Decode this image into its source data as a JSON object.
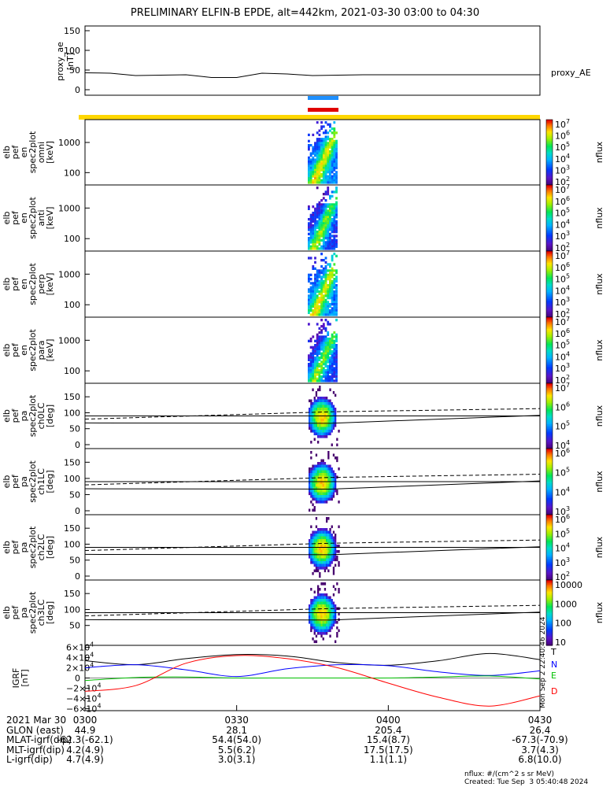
{
  "title": "PRELIMINARY ELFIN-B EPDE, alt=442km, 2021-03-30 03:00 to 04:30",
  "chart_data": [
    {
      "type": "line",
      "panel": "proxy_ae",
      "ylabel": "proxy_ae\n[nT]",
      "yticks": [
        "150",
        "100",
        "50",
        "0"
      ],
      "ylim": [
        0,
        160
      ],
      "series": [
        {
          "name": "proxy_AE",
          "x_min": [
            0,
            5,
            10,
            15,
            20,
            25,
            30,
            35,
            40,
            45,
            50,
            55,
            60,
            65,
            70,
            75,
            80,
            85,
            90
          ],
          "values": [
            43,
            42,
            36,
            37,
            38,
            31,
            31,
            42,
            40,
            36,
            37,
            38,
            38,
            38,
            38,
            38,
            38,
            38,
            38
          ]
        }
      ]
    },
    {
      "type": "heatmap",
      "panel": "elb pef en spec2plot omni",
      "ylabel": "elb\npef\nen\nspec2plot\nomni\n[keV]",
      "yticks": [
        "1000",
        "100"
      ],
      "colorbar": {
        "label": "nflux",
        "ticks": [
          "10^7",
          "10^6",
          "10^5",
          "10^4",
          "10^3",
          "10^2"
        ]
      }
    },
    {
      "type": "heatmap",
      "panel": "elb pef en spec2plot anti",
      "ylabel": "elb\npef\nen\nspec2plot\nanti\n[keV]",
      "yticks": [
        "1000",
        "100"
      ],
      "colorbar": {
        "label": "nflux",
        "ticks": [
          "10^7",
          "10^6",
          "10^5",
          "10^4",
          "10^3",
          "10^2"
        ]
      }
    },
    {
      "type": "heatmap",
      "panel": "elb pef en spec2plot perp",
      "ylabel": "elb\npef\nen\nspec2plot\nperp\n[keV]",
      "yticks": [
        "1000",
        "100"
      ],
      "colorbar": {
        "label": "nflux",
        "ticks": [
          "10^7",
          "10^6",
          "10^5",
          "10^4",
          "10^3",
          "10^2"
        ]
      }
    },
    {
      "type": "heatmap",
      "panel": "elb pef en spec2plot para",
      "ylabel": "elb\npef\nen\nspec2plot\npara\n[keV]",
      "yticks": [
        "1000",
        "100"
      ],
      "colorbar": {
        "label": "nflux",
        "ticks": [
          "10^7",
          "10^6",
          "10^5",
          "10^4",
          "10^3",
          "10^2"
        ]
      }
    },
    {
      "type": "heatmap",
      "panel": "elb pef pa spec2plot ch0LC",
      "ylabel": "elb\npef\npa\nspec2plot\nch0LC\n[deg]",
      "yticks": [
        "150",
        "100",
        "50",
        "0"
      ],
      "colorbar": {
        "label": "nflux",
        "ticks": [
          "10^7",
          "10^6",
          "10^5",
          "10^4"
        ]
      }
    },
    {
      "type": "heatmap",
      "panel": "elb pef pa spec2plot ch1LC",
      "ylabel": "elb\npef\npa\nspec2plot\nch1LC\n[deg]",
      "yticks": [
        "150",
        "100",
        "50",
        "0"
      ],
      "colorbar": {
        "label": "nflux",
        "ticks": [
          "10^6",
          "10^5",
          "10^4",
          "10^3"
        ]
      }
    },
    {
      "type": "heatmap",
      "panel": "elb pef pa spec2plot ch2LC",
      "ylabel": "elb\npef\npa\nspec2plot\nch2LC\n[deg]",
      "yticks": [
        "150",
        "100",
        "50",
        "0"
      ],
      "colorbar": {
        "label": "nflux",
        "ticks": [
          "10^6",
          "10^5",
          "10^4",
          "10^3",
          "10^2"
        ]
      }
    },
    {
      "type": "heatmap",
      "panel": "elb pef pa spec2plot ch3LC",
      "ylabel": "elb\npef\npa\nspec2plot\nch3LC\n[deg]",
      "yticks": [
        "150",
        "100",
        "50"
      ],
      "colorbar": {
        "label": "nflux",
        "ticks": [
          "10000",
          "1000",
          "100",
          "10"
        ]
      }
    },
    {
      "type": "line",
      "panel": "IGRF",
      "ylabel": "IGRF\n[nT]",
      "yticks": [
        "6×10^4",
        "4×10^4",
        "2×10^4",
        "0",
        "−2×10^4",
        "−4×10^4",
        "−6×10^4"
      ],
      "ylim": [
        -64000,
        64000
      ],
      "legend": [
        "T",
        "N",
        "E",
        "D"
      ],
      "series": [
        {
          "name": "T",
          "color": "#000000",
          "x_min": [
            0,
            10,
            20,
            30,
            40,
            50,
            60,
            70,
            80,
            90
          ],
          "values": [
            34000,
            26000,
            38000,
            46000,
            43000,
            30000,
            25000,
            34000,
            48000,
            36000
          ]
        },
        {
          "name": "N",
          "color": "#0000ff",
          "x_min": [
            0,
            10,
            20,
            30,
            40,
            50,
            60,
            70,
            80,
            90
          ],
          "values": [
            20000,
            26000,
            16000,
            3000,
            18000,
            26000,
            24000,
            12000,
            5000,
            14000
          ]
        },
        {
          "name": "E",
          "color": "#00c000",
          "x_min": [
            0,
            10,
            20,
            30,
            40,
            50,
            60,
            70,
            80,
            90
          ],
          "values": [
            -5000,
            1000,
            2000,
            0,
            0,
            0,
            0,
            2000,
            4000,
            -2000
          ]
        },
        {
          "name": "D",
          "color": "#ff0000",
          "x_min": [
            0,
            10,
            20,
            30,
            40,
            50,
            60,
            70,
            80,
            90
          ],
          "values": [
            -26000,
            -15000,
            29000,
            44000,
            38000,
            20000,
            -10000,
            -38000,
            -55000,
            -35000
          ]
        }
      ]
    }
  ],
  "x_axis": {
    "ticks": [
      "0300",
      "0330",
      "0400",
      "0430"
    ],
    "rows": [
      {
        "label": "2021 Mar 30",
        "values": [
          "0300",
          "0330",
          "0400",
          "0430"
        ]
      },
      {
        "label": "GLON (east)",
        "values": [
          "44.9",
          "28.1",
          "205.4",
          "26.4"
        ]
      },
      {
        "label": "MLAT-igrf(dip)",
        "values": [
          "-62.3(-62.1)",
          "54.4(54.0)",
          "15.4(8.7)",
          "-67.3(-70.9)"
        ]
      },
      {
        "label": "MLT-igrf(dip)",
        "values": [
          "4.2(4.9)",
          "5.5(6.2)",
          "17.5(17.5)",
          "3.7(4.3)"
        ]
      },
      {
        "label": "L-igrf(dip)",
        "values": [
          "4.7(4.9)",
          "3.0(3.1)",
          "1.1(1.1)",
          "6.8(10.0)"
        ]
      }
    ]
  },
  "side_label": "Mon Sep  2 22:40:46 2024",
  "footer": {
    "units": "nflux: #/(cm^2 s sr MeV)",
    "created": "Created: Tue Sep  3 05:40:48 2024"
  }
}
